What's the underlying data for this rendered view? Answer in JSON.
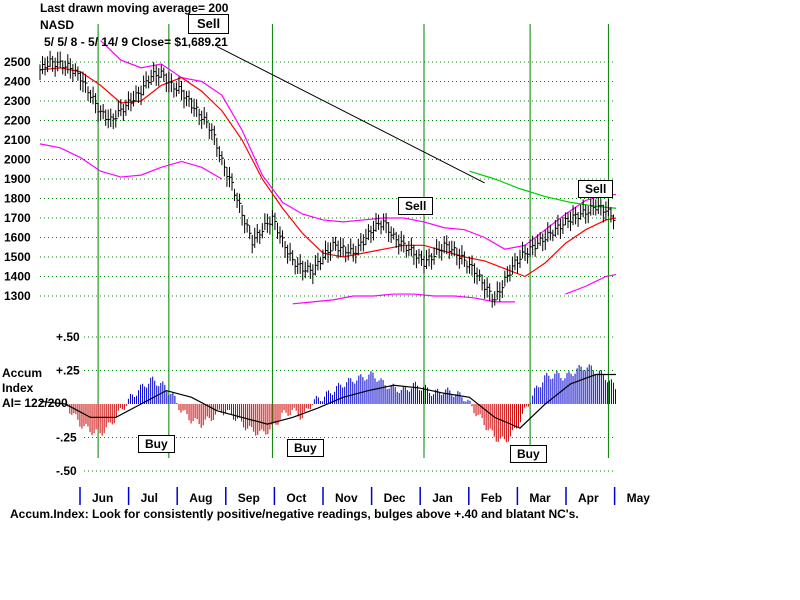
{
  "header": {
    "line1": "Last drawn moving average= 200",
    "line2": "NASD",
    "line3": "5/ 5/ 8 -  5/ 14/ 9    Close= $1,689.21"
  },
  "signals": [
    {
      "label": "Sell",
      "date_index": 2.8,
      "style": "big"
    },
    {
      "label": "Sell",
      "date_index": 7.2,
      "style": "normal"
    },
    {
      "label": "Sell",
      "date_index": 12.0,
      "style": "normal"
    },
    {
      "label": "Buy",
      "date_index": 1.3,
      "style": "normal"
    },
    {
      "label": "Buy",
      "date_index": 4.6,
      "style": "normal"
    },
    {
      "label": "Buy",
      "date_index": 9.8,
      "style": "normal"
    }
  ],
  "indicator": {
    "title_line1": "Accum",
    "title_line2": "Index",
    "title_line3": "AI= 122/200",
    "caption": "Accum.Index: Look for consistently positive/negative readings, bulges above +.40 and blatant NC's.",
    "ticks": [
      "+.50",
      "+.25",
      "-.25",
      "-.50"
    ],
    "tick_values": [
      0.5,
      0.25,
      -0.25,
      -0.5
    ]
  },
  "colors": {
    "price_bars": "#000000",
    "moving_average": "#ff0000",
    "bands": "#ff00ff",
    "long_ma": "#00cc00",
    "trendline": "#000000",
    "vertical_lines": "#008000",
    "gridlines": "#008000",
    "accum_positive": "#0000cc",
    "accum_negative": "#cc0000",
    "accum_ma": "#000000"
  },
  "chart_data": {
    "type": "line",
    "title": "NASD",
    "y_ticks": [
      2500,
      2400,
      2300,
      2200,
      2100,
      2000,
      1900,
      1800,
      1700,
      1600,
      1500,
      1400,
      1300
    ],
    "ylim": [
      1270,
      2560
    ],
    "months": [
      "Jun",
      "Jul",
      "Aug",
      "Sep",
      "Oct",
      "Nov",
      "Dec",
      "Jan",
      "Feb",
      "Mar",
      "Apr",
      "May"
    ],
    "signal_month_positions": [
      1.15,
      2.55,
      4.6,
      7.6,
      9.7,
      11.25
    ],
    "price": {
      "x": [
        0,
        0.2,
        0.4,
        0.6,
        0.8,
        1.0,
        1.2,
        1.4,
        1.6,
        1.8,
        2.0,
        2.2,
        2.4,
        2.6,
        2.8,
        3.0,
        3.2,
        3.4,
        3.6,
        3.8,
        4.0,
        4.2,
        4.4,
        4.6,
        4.8,
        5.0,
        5.2,
        5.4,
        5.6,
        5.8,
        6.0,
        6.2,
        6.4,
        6.6,
        6.8,
        7.0,
        7.2,
        7.4,
        7.6,
        7.8,
        8.0,
        8.2,
        8.4,
        8.6,
        8.8,
        9.0,
        9.2,
        9.4,
        9.6,
        9.8,
        10.0,
        10.2,
        10.4,
        10.6,
        10.8,
        11.0,
        11.2,
        11.4
      ],
      "values": [
        2460,
        2500,
        2490,
        2470,
        2420,
        2330,
        2240,
        2200,
        2250,
        2300,
        2350,
        2430,
        2440,
        2380,
        2350,
        2280,
        2220,
        2150,
        1990,
        1870,
        1720,
        1580,
        1640,
        1700,
        1580,
        1480,
        1440,
        1430,
        1500,
        1560,
        1540,
        1520,
        1580,
        1650,
        1680,
        1600,
        1560,
        1520,
        1470,
        1510,
        1560,
        1530,
        1480,
        1430,
        1350,
        1280,
        1380,
        1470,
        1520,
        1560,
        1600,
        1640,
        1680,
        1710,
        1730,
        1760,
        1740,
        1690
      ]
    },
    "ma_short": {
      "x": [
        0,
        0.4,
        0.8,
        1.2,
        1.6,
        2.0,
        2.4,
        2.8,
        3.2,
        3.6,
        4.0,
        4.4,
        4.8,
        5.2,
        5.6,
        6.0,
        6.4,
        6.8,
        7.2,
        7.6,
        8.0,
        8.4,
        8.8,
        9.2,
        9.6,
        10.0,
        10.4,
        10.8,
        11.2,
        11.4
      ],
      "values": [
        2460,
        2470,
        2450,
        2380,
        2290,
        2300,
        2380,
        2420,
        2350,
        2250,
        2100,
        1900,
        1750,
        1620,
        1520,
        1500,
        1520,
        1540,
        1560,
        1560,
        1530,
        1500,
        1480,
        1440,
        1400,
        1470,
        1570,
        1640,
        1690,
        1700
      ]
    },
    "band_upper": {
      "x": [
        1.2,
        1.6,
        2.0,
        2.4,
        2.8,
        3.2,
        3.6,
        4.0,
        4.4,
        4.8,
        5.2,
        5.6,
        6.0,
        6.4,
        6.8,
        7.2,
        7.6,
        8.0,
        8.4,
        8.8,
        9.2,
        9.6,
        10.0,
        10.4,
        10.8,
        11.2,
        11.4
      ],
      "values": [
        2610,
        2510,
        2470,
        2490,
        2420,
        2400,
        2330,
        2150,
        1920,
        1780,
        1720,
        1690,
        1680,
        1690,
        1700,
        1700,
        1680,
        1650,
        1640,
        1600,
        1540,
        1560,
        1640,
        1720,
        1790,
        1820,
        1820
      ]
    },
    "band_lower": {
      "x": [
        0.0,
        0.4,
        0.8,
        1.2,
        1.6,
        2.0,
        2.4,
        2.8,
        3.2,
        3.6
      ],
      "values": [
        2080,
        2060,
        2010,
        1940,
        1910,
        1920,
        1960,
        1990,
        1960,
        1900
      ]
    },
    "band_lower2": {
      "x": [
        5.0,
        5.4,
        5.8,
        6.2,
        6.6,
        7.0,
        7.4,
        7.8,
        8.2,
        8.6,
        9.0,
        9.4
      ],
      "values": [
        1260,
        1270,
        1280,
        1300,
        1300,
        1310,
        1310,
        1300,
        1300,
        1290,
        1270,
        1270
      ]
    },
    "band_lower3": {
      "x": [
        10.4,
        10.8,
        11.2,
        11.4
      ],
      "values": [
        1310,
        1350,
        1400,
        1410
      ]
    },
    "long_ma": {
      "x": [
        8.5,
        9.0,
        9.5,
        10.0,
        10.5,
        11.0,
        11.4
      ],
      "values": [
        1940,
        1900,
        1850,
        1810,
        1780,
        1760,
        1750
      ]
    },
    "trendline": {
      "x": [
        3.5,
        8.8
      ],
      "values": [
        2580,
        1880
      ]
    },
    "accum_index": {
      "x": [
        0,
        0.2,
        0.4,
        0.6,
        0.8,
        1.0,
        1.2,
        1.4,
        1.6,
        1.8,
        2.0,
        2.2,
        2.4,
        2.6,
        2.8,
        3.0,
        3.2,
        3.4,
        3.6,
        3.8,
        4.0,
        4.2,
        4.4,
        4.6,
        4.8,
        5.0,
        5.2,
        5.4,
        5.6,
        5.8,
        6.0,
        6.2,
        6.4,
        6.6,
        6.8,
        7.0,
        7.2,
        7.4,
        7.6,
        7.8,
        8.0,
        8.2,
        8.4,
        8.6,
        8.8,
        9.0,
        9.2,
        9.4,
        9.6,
        9.8,
        10.0,
        10.2,
        10.4,
        10.6,
        10.8,
        11.0,
        11.2,
        11.4
      ],
      "values": [
        0.12,
        0.15,
        0.1,
        -0.05,
        -0.15,
        -0.2,
        -0.22,
        -0.15,
        -0.05,
        0.05,
        0.12,
        0.18,
        0.15,
        0.08,
        -0.05,
        -0.12,
        -0.15,
        -0.1,
        -0.05,
        -0.08,
        -0.15,
        -0.2,
        -0.22,
        -0.18,
        -0.08,
        -0.05,
        -0.1,
        0.02,
        0.05,
        0.1,
        0.15,
        0.18,
        0.2,
        0.22,
        0.15,
        0.12,
        0.1,
        0.14,
        0.12,
        0.08,
        0.1,
        0.08,
        0.05,
        -0.05,
        -0.15,
        -0.25,
        -0.28,
        -0.2,
        -0.05,
        0.1,
        0.2,
        0.22,
        0.2,
        0.25,
        0.28,
        0.25,
        0.2,
        0.12
      ]
    },
    "accum_ma": {
      "x": [
        0,
        0.5,
        1.0,
        1.5,
        2.0,
        2.5,
        3.0,
        3.5,
        4.0,
        4.5,
        5.0,
        5.5,
        6.0,
        6.5,
        7.0,
        7.5,
        8.0,
        8.5,
        9.0,
        9.5,
        10.0,
        10.5,
        11.0,
        11.4
      ],
      "values": [
        0.02,
        0.0,
        -0.1,
        -0.1,
        0.0,
        0.1,
        0.05,
        -0.05,
        -0.1,
        -0.15,
        -0.1,
        -0.03,
        0.05,
        0.1,
        0.14,
        0.12,
        0.08,
        0.05,
        -0.1,
        -0.18,
        0.0,
        0.15,
        0.22,
        0.22
      ]
    }
  }
}
